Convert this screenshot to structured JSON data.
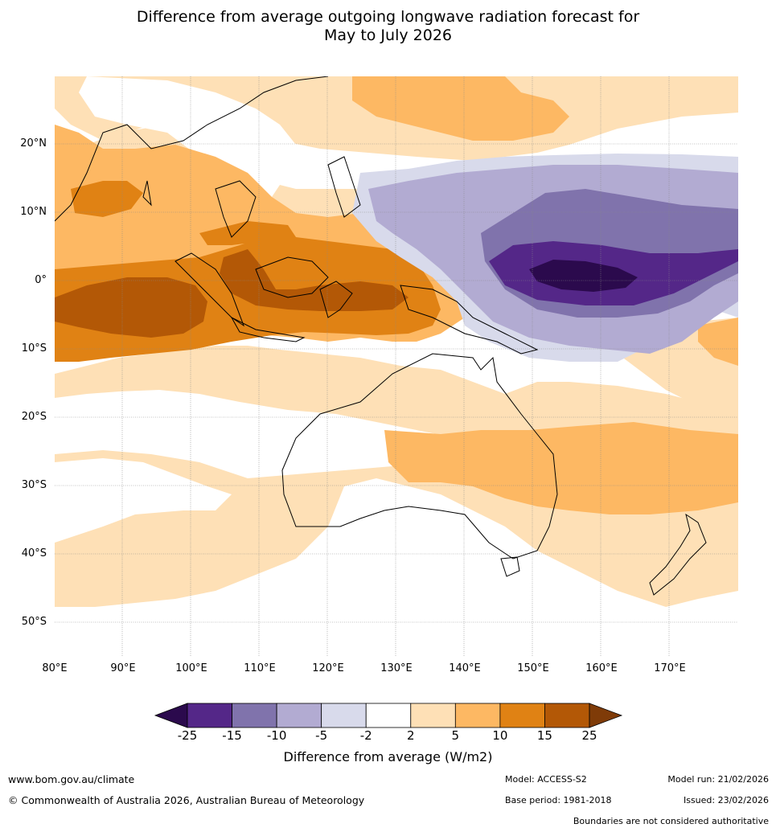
{
  "title": {
    "line1": "Difference from average outgoing longwave radiation forecast for",
    "line2": "May to July 2026"
  },
  "map": {
    "region": "Indo-Pacific, Maritime Continent and Australia",
    "lon_labels": [
      "80°E",
      "90°E",
      "100°E",
      "110°E",
      "120°E",
      "130°E",
      "140°E",
      "150°E",
      "160°E",
      "170°E"
    ],
    "lat_labels": [
      "20°N",
      "10°N",
      "0°",
      "10°S",
      "20°S",
      "30°S",
      "40°S",
      "50°S"
    ],
    "extent": {
      "lon": [
        80,
        180
      ],
      "lat": [
        -55,
        30
      ]
    },
    "features": {
      "max_positive": "15 to 25 W/m2 over the eastern Indian Ocean and Indonesia",
      "max_negative": "below -25 W/m2 near the equator around 155-160°E"
    }
  },
  "legend": {
    "title": "Difference from average (W/m2)",
    "ticks": [
      "-25",
      "-15",
      "-10",
      "-5",
      "-2",
      "2",
      "5",
      "10",
      "15",
      "25"
    ],
    "colors": [
      "#2b0a4d",
      "#542788",
      "#8073ac",
      "#b2abd2",
      "#d8daeb",
      "#ffffff",
      "#fee0b6",
      "#fdb863",
      "#e08214",
      "#b35806",
      "#7f3b08"
    ]
  },
  "footer": {
    "website": "www.bom.gov.au/climate",
    "copyright": "© Commonwealth of Australia 2026, Australian Bureau of Meteorology",
    "model": "Model: ACCESS-S2",
    "base_period": "Base period: 1981-2018",
    "model_run": "Model run: 21/02/2026",
    "issued": "Issued: 23/02/2026",
    "disclaimer": "Boundaries are not considered authoritative"
  }
}
